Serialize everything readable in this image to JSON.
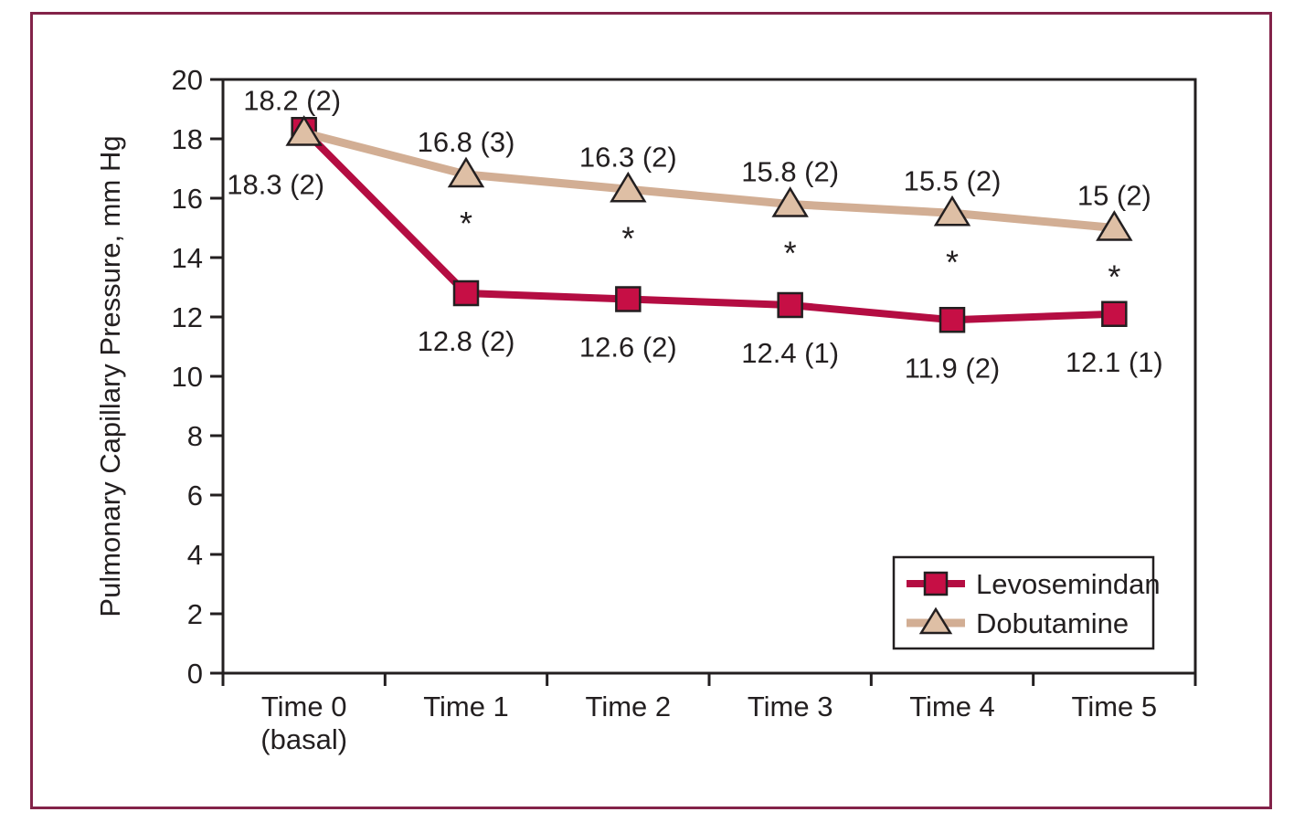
{
  "figure": {
    "frame_color": "#832349",
    "background": "#ffffff",
    "ink_color": "#231f20"
  },
  "chart_data": {
    "type": "line",
    "title": "",
    "xlabel": "",
    "ylabel": "Pulmonary Capillary Pressure, mm Hg",
    "ylim": [
      0,
      20
    ],
    "ytick_step": 2,
    "ytick_labels": [
      "0",
      "2",
      "4",
      "6",
      "8",
      "10",
      "12",
      "14",
      "16",
      "18",
      "20"
    ],
    "categories": [
      "Time 0 (basal)",
      "Time 1",
      "Time 2",
      "Time 3",
      "Time 4",
      "Time 5"
    ],
    "category_lines": [
      [
        "Time 0",
        "(basal)"
      ],
      [
        "Time 1"
      ],
      [
        "Time 2"
      ],
      [
        "Time 3"
      ],
      [
        "Time 4"
      ],
      [
        "Time 5"
      ]
    ],
    "grid": false,
    "series": [
      {
        "name": "Levosemindan",
        "marker": "square",
        "line_color": "#b40d42",
        "marker_fill": "#c60f45",
        "values": [
          18.3,
          12.8,
          12.6,
          12.4,
          11.9,
          12.1
        ],
        "point_labels": [
          "18.3 (2)",
          "12.8 (2)",
          "12.6 (2)",
          "12.4 (1)",
          "11.9 (2)",
          "12.1 (1)"
        ],
        "label_position": "below"
      },
      {
        "name": "Dobutamine",
        "marker": "triangle",
        "line_color": "#d2ae94",
        "marker_fill": "#debfa5",
        "values": [
          18.2,
          16.8,
          16.3,
          15.8,
          15.5,
          15.0
        ],
        "point_labels": [
          "18.2 (2)",
          "16.8 (3)",
          "16.3 (2)",
          "15.8 (2)",
          "15.5 (2)",
          "15 (2)"
        ],
        "label_position": "above"
      }
    ],
    "significance": {
      "symbol": "*",
      "category_indices": [
        1,
        2,
        3,
        4,
        5
      ],
      "relative_to_series": "Dobutamine"
    },
    "legend": {
      "position": "bottom-right",
      "entries": [
        "Levosemindan",
        "Dobutamine"
      ]
    }
  }
}
